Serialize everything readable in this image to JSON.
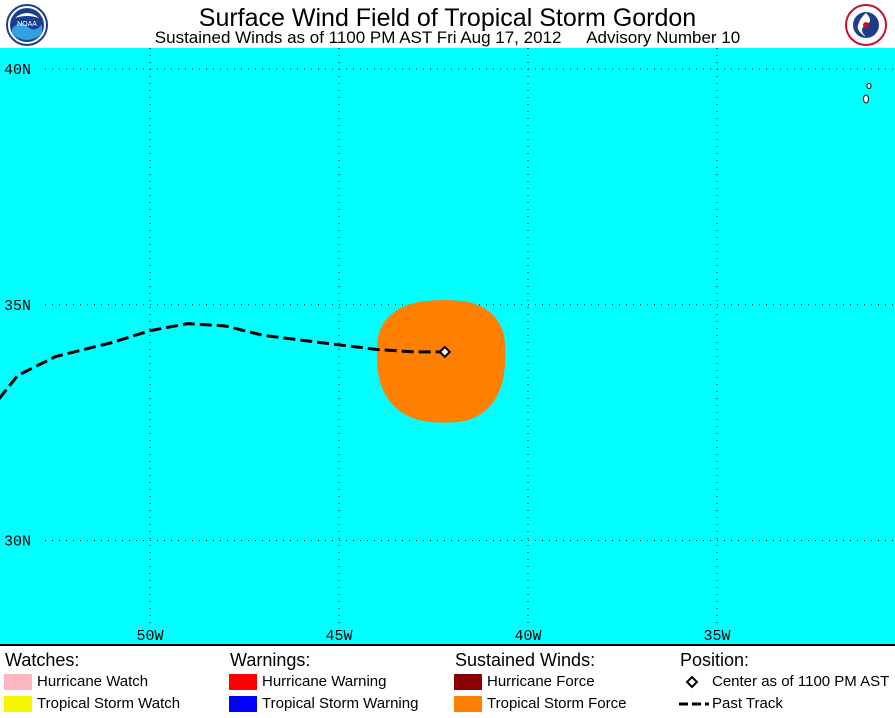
{
  "header": {
    "title": "Surface Wind Field of Tropical Storm Gordon",
    "subtitle_time": "Sustained Winds as of 1100 PM AST Fri Aug 17, 2012",
    "subtitle_advisory": "Advisory Number 10",
    "left_logo": "noaa-logo",
    "right_logo": "nws-logo"
  },
  "map": {
    "ocean_color": "#00FFFF",
    "wind_field_color": "#FF8000",
    "lat_labels": [
      "40N",
      "35N",
      "30N"
    ],
    "lon_labels": [
      "50W",
      "45W",
      "40W",
      "35W"
    ],
    "storm_center": {
      "lon": -42.2,
      "lat": 34.0
    },
    "past_track": [
      {
        "lon": -54.0,
        "lat": 33.0
      },
      {
        "lon": -53.5,
        "lat": 33.5
      },
      {
        "lon": -52.5,
        "lat": 33.9
      },
      {
        "lon": -51.0,
        "lat": 34.2
      },
      {
        "lon": -50.0,
        "lat": 34.45
      },
      {
        "lon": -49.0,
        "lat": 34.6
      },
      {
        "lon": -48.0,
        "lat": 34.55
      },
      {
        "lon": -47.0,
        "lat": 34.35
      },
      {
        "lon": -45.5,
        "lat": 34.2
      },
      {
        "lon": -44.0,
        "lat": 34.05
      },
      {
        "lon": -43.0,
        "lat": 34.0
      },
      {
        "lon": -42.2,
        "lat": 34.0
      }
    ],
    "tropical_storm_force_extent": {
      "north_deg": 1.1,
      "south_deg": 1.5,
      "east_deg": 1.6,
      "west_deg": 1.8
    }
  },
  "legend": {
    "watches_heading": "Watches:",
    "warnings_heading": "Warnings:",
    "winds_heading": "Sustained Winds:",
    "position_heading": "Position:",
    "watches": [
      {
        "label": "Hurricane Watch",
        "color": "#FFB6C1"
      },
      {
        "label": "Tropical Storm Watch",
        "color": "#F5F500"
      }
    ],
    "warnings": [
      {
        "label": "Hurricane Warning",
        "color": "#FF0000"
      },
      {
        "label": "Tropical Storm Warning",
        "color": "#0000FF"
      }
    ],
    "winds": [
      {
        "label": "Hurricane Force",
        "color": "#8B0000"
      },
      {
        "label": "Tropical Storm Force",
        "color": "#FF8000"
      }
    ],
    "position": [
      {
        "label": "Center as of 1100 PM AST",
        "icon": "diamond-icon"
      },
      {
        "label": "Past Track",
        "icon": "dashed-line-icon"
      }
    ]
  }
}
